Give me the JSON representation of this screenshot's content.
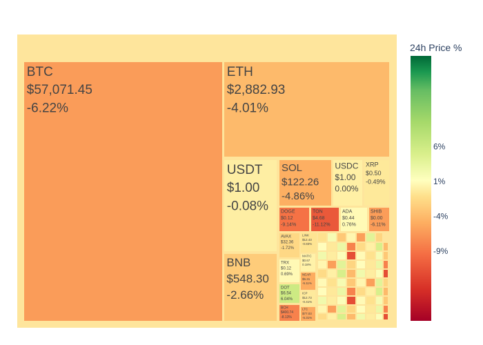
{
  "chart_data": {
    "type": "treemap",
    "colorbar": {
      "title": "24h Price %",
      "tick_labels": [
        "6%",
        "1%",
        "-4%",
        "-9%"
      ],
      "tick_values": [
        6,
        1,
        -4,
        -9
      ],
      "range": [
        -19,
        19
      ],
      "colorscale": "RdYlGn"
    },
    "tiles": [
      {
        "name": "BTC",
        "price": "$57,071.45",
        "change": "-6.22%",
        "pct": -6.22
      },
      {
        "name": "ETH",
        "price": "$2,882.93",
        "change": "-4.01%",
        "pct": -4.01
      },
      {
        "name": "USDT",
        "price": "$1.00",
        "change": "-0.08%",
        "pct": -0.08
      },
      {
        "name": "BNB",
        "price": "$548.30",
        "change": "-2.66%",
        "pct": -2.66
      },
      {
        "name": "SOL",
        "price": "$122.26",
        "change": "-4.86%",
        "pct": -4.86
      },
      {
        "name": "USDC",
        "price": "$1.00",
        "change": "0.00%",
        "pct": 0.0
      },
      {
        "name": "XRP",
        "price": "$0.50",
        "change": "-0.49%",
        "pct": -0.49
      },
      {
        "name": "DOGE",
        "price": "$0.12",
        "change": "-9.14%",
        "pct": -9.14
      },
      {
        "name": "TON",
        "price": "$4.68",
        "change": "-11.12%",
        "pct": -11.12
      },
      {
        "name": "ADA",
        "price": "$0.44",
        "change": "0.76%",
        "pct": 0.76
      },
      {
        "name": "SHIB",
        "price": "$0.00",
        "change": "-6.11%",
        "pct": -6.11
      },
      {
        "name": "AVAX",
        "price": "$32.36",
        "change": "-1.72%",
        "pct": -1.72
      },
      {
        "name": "TRX",
        "price": "$0.12",
        "change": "0.69%",
        "pct": 0.69
      },
      {
        "name": "DOT",
        "price": "$6.54",
        "change": "6.04%",
        "pct": 6.04
      },
      {
        "name": "BCH",
        "price": "$400.74",
        "change": "-8.13%",
        "pct": -8.13
      },
      {
        "name": "LINK",
        "price": "$12.43",
        "change": "-0.83%",
        "pct": -0.83
      },
      {
        "name": "MATIC",
        "price": "$0.67",
        "change": "0.18%",
        "pct": 0.18
      },
      {
        "name": "NEAR",
        "price": "$5.31",
        "change": "-5.11%",
        "pct": -5.11
      },
      {
        "name": "ICP",
        "price": "$12.73",
        "change": "-0.41%",
        "pct": -0.41
      },
      {
        "name": "LTC",
        "price": "$77.03",
        "change": "-5.31%",
        "pct": -5.31
      }
    ]
  }
}
